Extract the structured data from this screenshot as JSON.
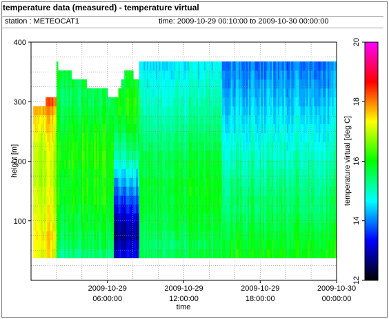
{
  "header": {
    "title": "temperature data (measured) - temperature virtual",
    "station": "station : METEOCAT1",
    "time_range": "time: 2009-10-29 00:10:00 to 2009-10-30 00:00:00"
  },
  "chart_data": {
    "type": "heatmap",
    "title": "temperature data (measured) - temperature virtual",
    "xlabel": "time",
    "ylabel": "height [m]",
    "colorbar_label": "temperature virtual [deg C]",
    "x_range": [
      "2009-10-29 00:10:00",
      "2009-10-30 00:00:00"
    ],
    "ylim": [
      0,
      400
    ],
    "colorbar_range": [
      12,
      20
    ],
    "x_ticks": [
      {
        "line1": "2009-10-29",
        "line2": "06:00:00",
        "hour": 6
      },
      {
        "line1": "2009-10-29",
        "line2": "12:00:00",
        "hour": 12
      },
      {
        "line1": "2009-10-29",
        "line2": "18:00:00",
        "hour": 18
      },
      {
        "line1": "2009-10-30",
        "line2": "00:00:00",
        "hour": 24
      }
    ],
    "y_ticks": [
      100,
      200,
      300,
      400
    ],
    "colorbar_ticks": [
      12,
      14,
      16,
      18,
      20
    ],
    "colorscale": [
      "#000000",
      "#0000ff",
      "#00ffff",
      "#00ff00",
      "#ffff00",
      "#ff0000",
      "#ff00ff"
    ],
    "height_levels": [
      45,
      60,
      75,
      90,
      105,
      120,
      135,
      150,
      165,
      180,
      195,
      210,
      225,
      240,
      255,
      270,
      285,
      300,
      315,
      330,
      345,
      360
    ],
    "segments": [
      {
        "hours": [
          0.17,
          2.0
        ],
        "tops": [
          290,
          300,
          310
        ],
        "profile": [
          17.3,
          17.4,
          17.4,
          17.3,
          17.2,
          17.2,
          17.1,
          17.1,
          17.0,
          17.0,
          17.0,
          17.0,
          17.1,
          17.2,
          17.4,
          17.5,
          17.8,
          18.2
        ]
      },
      {
        "hours": [
          2.0,
          6.5
        ],
        "tops": [
          360,
          330,
          310
        ],
        "profile": [
          15.4,
          15.6,
          15.7,
          15.8,
          15.8,
          15.9,
          16.0,
          16.0,
          16.0,
          16.0,
          16.1,
          16.1,
          16.1,
          16.0,
          15.9,
          15.8,
          15.7,
          15.6,
          15.6,
          15.7,
          15.8,
          15.8
        ]
      },
      {
        "hours": [
          6.5,
          8.5
        ],
        "tops": [
          300,
          360,
          330
        ],
        "profile": [
          13.2,
          13.0,
          12.8,
          12.9,
          13.1,
          13.4,
          13.7,
          14.0,
          14.3,
          14.6,
          14.9,
          15.2,
          15.4,
          15.6,
          15.8,
          15.9,
          16.0,
          16.0,
          15.9,
          15.8,
          15.8,
          15.8
        ]
      },
      {
        "hours": [
          8.5,
          15.0
        ],
        "tops": [
          360,
          360,
          360
        ],
        "profile": [
          15.6,
          15.5,
          15.6,
          15.7,
          15.7,
          15.8,
          15.8,
          15.8,
          15.8,
          15.7,
          15.7,
          15.6,
          15.5,
          15.4,
          15.3,
          15.2,
          15.1,
          15.0,
          14.9,
          14.8,
          14.7,
          14.6
        ]
      },
      {
        "hours": [
          15.0,
          24.0
        ],
        "tops": [
          360,
          360,
          360
        ],
        "profile": [
          16.0,
          15.9,
          15.8,
          15.7,
          15.6,
          15.5,
          15.5,
          15.4,
          15.3,
          15.2,
          15.1,
          15.0,
          14.9,
          14.8,
          14.7,
          14.6,
          14.5,
          14.4,
          14.3,
          14.2,
          14.1,
          14.0
        ]
      }
    ]
  }
}
